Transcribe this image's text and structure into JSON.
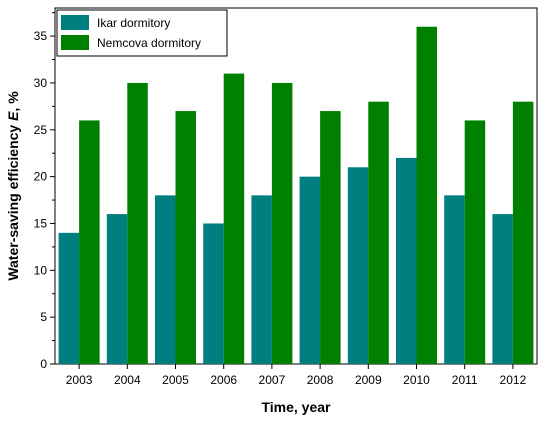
{
  "chart_data": {
    "type": "bar",
    "categories": [
      "2003",
      "2004",
      "2005",
      "2006",
      "2007",
      "2008",
      "2009",
      "2010",
      "2011",
      "2012"
    ],
    "series": [
      {
        "name": "Ikar dormitory",
        "values": [
          14,
          16,
          18,
          15,
          18,
          20,
          21,
          22,
          18,
          16
        ],
        "color": "#007F80"
      },
      {
        "name": "Nemcova dormitory",
        "values": [
          26,
          30,
          27,
          31,
          30,
          27,
          28,
          36,
          26,
          28
        ],
        "color": "#008000"
      }
    ],
    "xlabel": "Time, year",
    "ylabel_prefix": "Water-saving efficiency ",
    "ylabel_symbol": "E",
    "ylabel_suffix": ", %",
    "ylim": [
      0,
      38
    ],
    "yticks": [
      0,
      5,
      10,
      15,
      20,
      25,
      30,
      35
    ],
    "grid": false,
    "legend_position": "top-left"
  }
}
